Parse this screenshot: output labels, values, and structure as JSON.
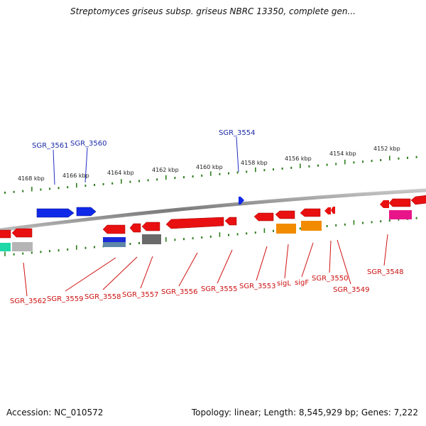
{
  "title": "Streptomyces griseus subsp. griseus NBRC 13350, complete gen...",
  "footer": {
    "accession": "Accession: NC_010572",
    "summary": "Topology: linear; Length: 8,545,929 bp; Genes: 7,222"
  },
  "scale": {
    "ticks": [
      "4168 kbp",
      "4166 kbp",
      "4164 kbp",
      "4162 kbp",
      "4160 kbp",
      "4158 kbp",
      "4156 kbp",
      "4154 kbp",
      "4152 kbp"
    ]
  },
  "colors": {
    "backbone": "#8a8a8a",
    "tick": "#2e7d1f",
    "forward_gene": "#1030e0",
    "reverse_gene": "#e01010",
    "label_forward": "#1a2aa8",
    "label_reverse": "#cc1010"
  },
  "genes_top": [
    "SGR_3561",
    "SGR_3560",
    "SGR_3554"
  ],
  "genes_bottom": [
    "SGR_3562",
    "SGR_3559",
    "SGR_3558",
    "SGR_3557",
    "SGR_3556",
    "SGR_3555",
    "SGR_3553",
    "sigL",
    "sigF",
    "SGR_3550",
    "SGR_3549",
    "SGR_3548"
  ]
}
